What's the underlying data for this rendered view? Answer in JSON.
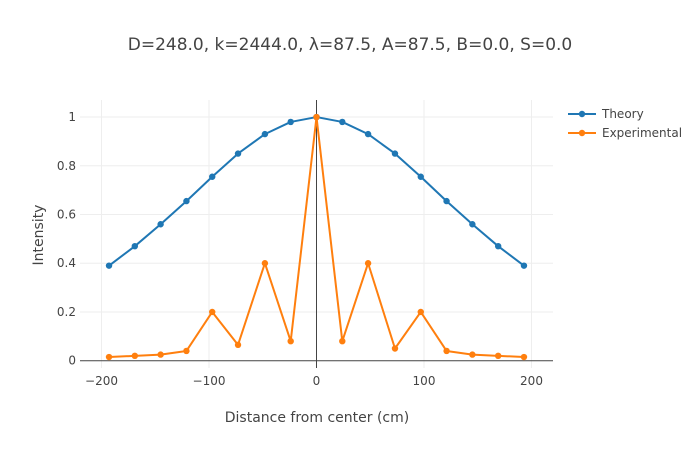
{
  "chart_data": {
    "type": "line",
    "title": "D=248.0, k=2444.0, λ=87.5, A=87.5, B=0.0, S=0.0",
    "xlabel": "Distance from center (cm)",
    "ylabel": "Intensity",
    "xlim": [
      -220,
      220
    ],
    "ylim": [
      -0.03,
      1.07
    ],
    "x_ticks": [
      -200,
      -100,
      0,
      100,
      200
    ],
    "x_tick_labels": [
      "−200",
      "−100",
      "0",
      "100",
      "200"
    ],
    "y_ticks": [
      0,
      0.2,
      0.4,
      0.6,
      0.8,
      1
    ],
    "y_tick_labels": [
      "0",
      "0.2",
      "0.4",
      "0.6",
      "0.8",
      "1"
    ],
    "legend_position": "top-right",
    "x": [
      -193,
      -169,
      -145,
      -121,
      -97,
      -73,
      -48,
      -24,
      0,
      24,
      48,
      73,
      97,
      121,
      145,
      169,
      193
    ],
    "series": [
      {
        "name": "Theory",
        "color": "#1f77b4",
        "values": [
          0.39,
          0.47,
          0.56,
          0.655,
          0.755,
          0.85,
          0.93,
          0.98,
          1.0,
          0.98,
          0.93,
          0.85,
          0.755,
          0.655,
          0.56,
          0.47,
          0.39
        ]
      },
      {
        "name": "Experimental",
        "color": "#ff7f0e",
        "values": [
          0.015,
          0.02,
          0.025,
          0.04,
          0.2,
          0.065,
          0.4,
          0.08,
          1.0,
          0.08,
          0.4,
          0.05,
          0.2,
          0.04,
          0.025,
          0.02,
          0.015
        ]
      }
    ]
  }
}
